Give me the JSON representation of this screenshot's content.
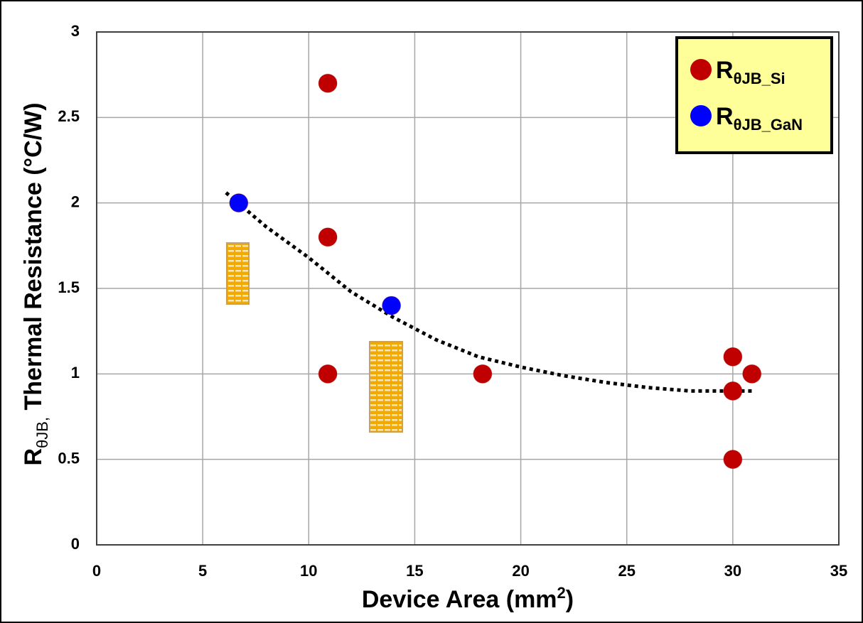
{
  "chart_data": {
    "type": "scatter",
    "x_label": {
      "text": "Device Area (mm",
      "sup": "2",
      "close": ")"
    },
    "y_label": {
      "main": "R",
      "sub": "θJB,",
      "rest": " Thermal Resistance (°C/W)"
    },
    "xlim": [
      0,
      35
    ],
    "xticks": [
      0,
      5,
      10,
      15,
      20,
      25,
      30,
      35
    ],
    "ylim": [
      0,
      3
    ],
    "yticks": [
      0,
      0.5,
      1,
      1.5,
      2,
      2.5,
      3
    ],
    "grid": true,
    "legend": "upper right",
    "series": [
      {
        "name": "R",
        "subscript": "θJB_Si",
        "color": "#c00000",
        "x": [
          10.9,
          10.9,
          10.9,
          18.2,
          30,
          30,
          30.9,
          30
        ],
        "values": [
          2.7,
          1.8,
          1.0,
          1.0,
          1.1,
          0.9,
          1.0,
          0.5
        ]
      },
      {
        "name": "R",
        "subscript": "θJB_GaN",
        "color": "#0000ff",
        "x": [
          6.7,
          13.9
        ],
        "values": [
          2.0,
          1.4
        ]
      }
    ],
    "trendline": {
      "color": "#000000",
      "x": [
        6.1,
        8,
        10,
        12,
        14,
        16,
        18,
        20,
        22,
        24,
        26,
        28,
        31
      ],
      "values": [
        2.06,
        1.86,
        1.68,
        1.48,
        1.33,
        1.2,
        1.1,
        1.04,
        0.99,
        0.95,
        0.92,
        0.9,
        0.9
      ]
    }
  }
}
